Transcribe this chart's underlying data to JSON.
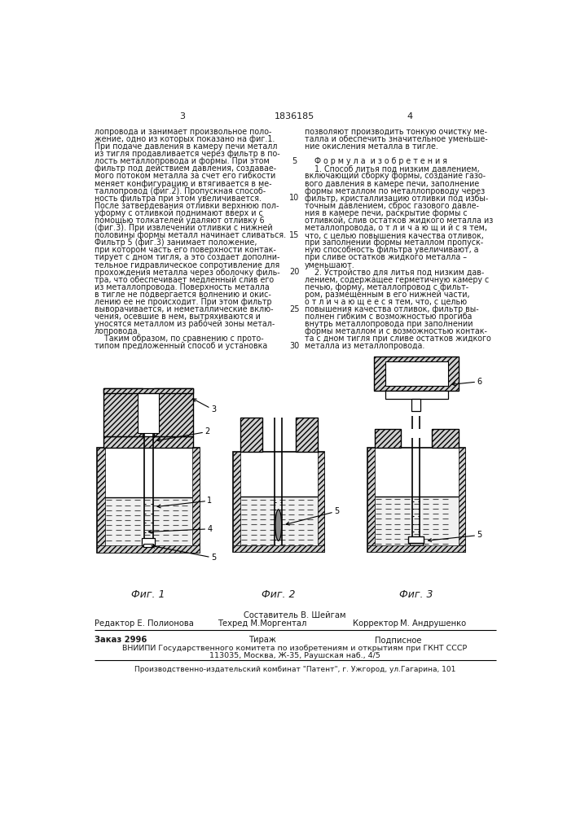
{
  "page_number_left": "3",
  "patent_number": "1836185",
  "page_number_right": "4",
  "left_column_text": [
    "лопровода и занимает произвольное поло-",
    "жение, одно из которых показано на фиг.1.",
    "При подаче давления в камеру печи металл",
    "из тигля продавливается через фильтр в по-",
    "лость металлопровода и формы. При этом",
    "фильтр под действием давления, создавае-",
    "мого потоком металла за счет его гибкости",
    "меняет конфигурацию и втягивается в ме-",
    "таллопровод (фиг.2). Пропускная способ-",
    "ность фильтра при этом увеличивается.",
    "После затвердевания отливки верхнюю пол-",
    "уформу с отливкой поднимают вверх и с",
    "помощью толкателей удаляют отливку 6",
    "(фиг.3). При извлечении отливки с нижней",
    "половины формы металл начинает сливаться.",
    "Фильтр 5 (фиг.3) занимает положение,",
    "при котором часть его поверхности контак-",
    "тирует с дном тигля, а это создает дополни-",
    "тельное гидравлическое сопротивление для",
    "прохождения металла через оболочку филь-",
    "тра, что обеспечивает медленный слив его",
    "из металлопровода. Поверхность металла",
    "в тигле не подвергается волнению и окис-",
    "лению ее не происходит. При этом фильтр",
    "выворачивается, и неметаллические вклю-",
    "чения, осевшие в нем, вытряхиваются и",
    "уносятся металлом из рабочей зоны метал-",
    "лопровода.",
    "    Таким образом, по сравнению с прото-",
    "типом предложенный способ и установка"
  ],
  "right_column_text": [
    "позволяют производить тонкую очистку ме-",
    "талла и обеспечить значительное уменьше-",
    "ние окисления металла в тигле.",
    "",
    "    Ф о р м у л а  и з о б р е т е н и я",
    "    1. Способ литья под низким давлением,",
    "включающий сборку формы, создание газо-",
    "вого давления в камере печи, заполнение",
    "формы металлом по металлопроводу через",
    "фильтр, кристаллизацию отливки под избы-",
    "точным давлением, сброс газового давле-",
    "ния в камере печи, раскрытие формы с",
    "отливкой, слив остатков жидкого металла из",
    "металлопровода, о т л и ч а ю щ и й с я тем,",
    "что, с целью повышения качества отливок,",
    "при заполнении формы металлом пропуск-",
    "ную способность фильтра увеличивают, а",
    "при сливе остатков жидкого металла –",
    "уменьшают.",
    "    2. Устройство для литья под низким дав-",
    "лением, содержащее герметичную камеру с",
    "печью, форму, металлопровод с фильт-",
    "ром, размещенным в его нижней части,",
    "о т л и ч а ю щ е е с я тем, что, с целью",
    "повышения качества отливок, фильтр вы-",
    "полнен гибким с возможностью прогиба",
    "внутрь металлопровода при заполнении",
    "формы металлом и с возможностью контак-",
    "та с дном тигля при сливе остатков жидкого",
    "металла из металлопровода."
  ],
  "line_numbers": [
    5,
    10,
    15,
    20,
    25,
    30
  ],
  "line_number_rows": [
    4,
    9,
    14,
    19,
    24,
    29
  ],
  "footer_composer": "Составитель В. Шейгам",
  "footer_techred": "Техред М.Моргентал",
  "footer_editor": "Редактор Е. Полионова",
  "footer_corrector": "Корректор",
  "footer_corrector_name": "М. Андрушенко",
  "footer_order": "Заказ 2996",
  "footer_circulation": "Тираж",
  "footer_subscription": "Подписное",
  "footer_vniip": "ВНИИПИ Государственного комитета по изобретениям и открытиям при ГКНТ СССР",
  "footer_address": "113035, Москва, Ж-35, Раушская наб., 4/5",
  "footer_plant": "Производственно-издательский комбинат \"Патент\", г. Ужгород, ул.Гагарина, 101",
  "bg_color": "#ffffff",
  "text_color": "#1a1a1a"
}
